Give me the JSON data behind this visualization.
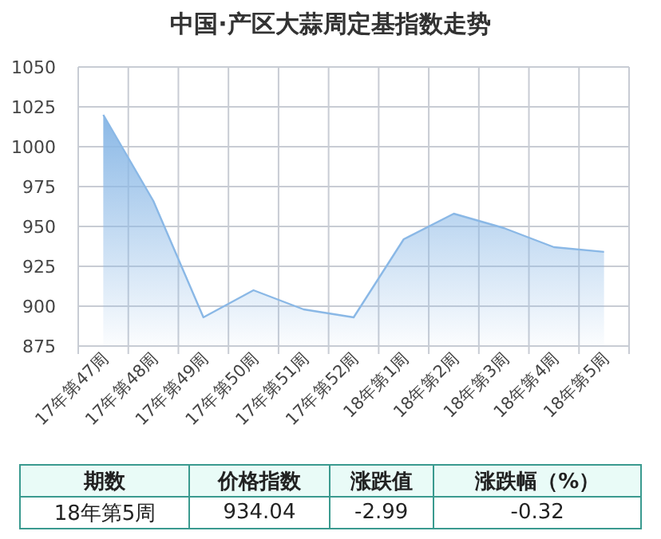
{
  "chart_data": {
    "type": "area",
    "title": "中国·产区大蒜周定基指数走势",
    "categories": [
      "17年第47周",
      "17年第48周",
      "17年第49周",
      "17年第50周",
      "17年第51周",
      "17年第52周",
      "18年第1周",
      "18年第2周",
      "18年第3周",
      "18年第4周",
      "18年第5周"
    ],
    "series": [
      {
        "color": "#8ab8e6",
        "values": [
          1020,
          966,
          893,
          910,
          898,
          893,
          942,
          958,
          949,
          937,
          934.04
        ]
      }
    ],
    "ylim": [
      875,
      1050
    ],
    "yticks": [
      875,
      900,
      925,
      950,
      975,
      1000,
      1025,
      1050
    ],
    "grid": true,
    "annotations": [
      "期数",
      "价格指数",
      "涨跌值",
      "涨跌幅（%）",
      "18年第5周",
      "934.04",
      "-2.99",
      "-0.32"
    ]
  }
}
